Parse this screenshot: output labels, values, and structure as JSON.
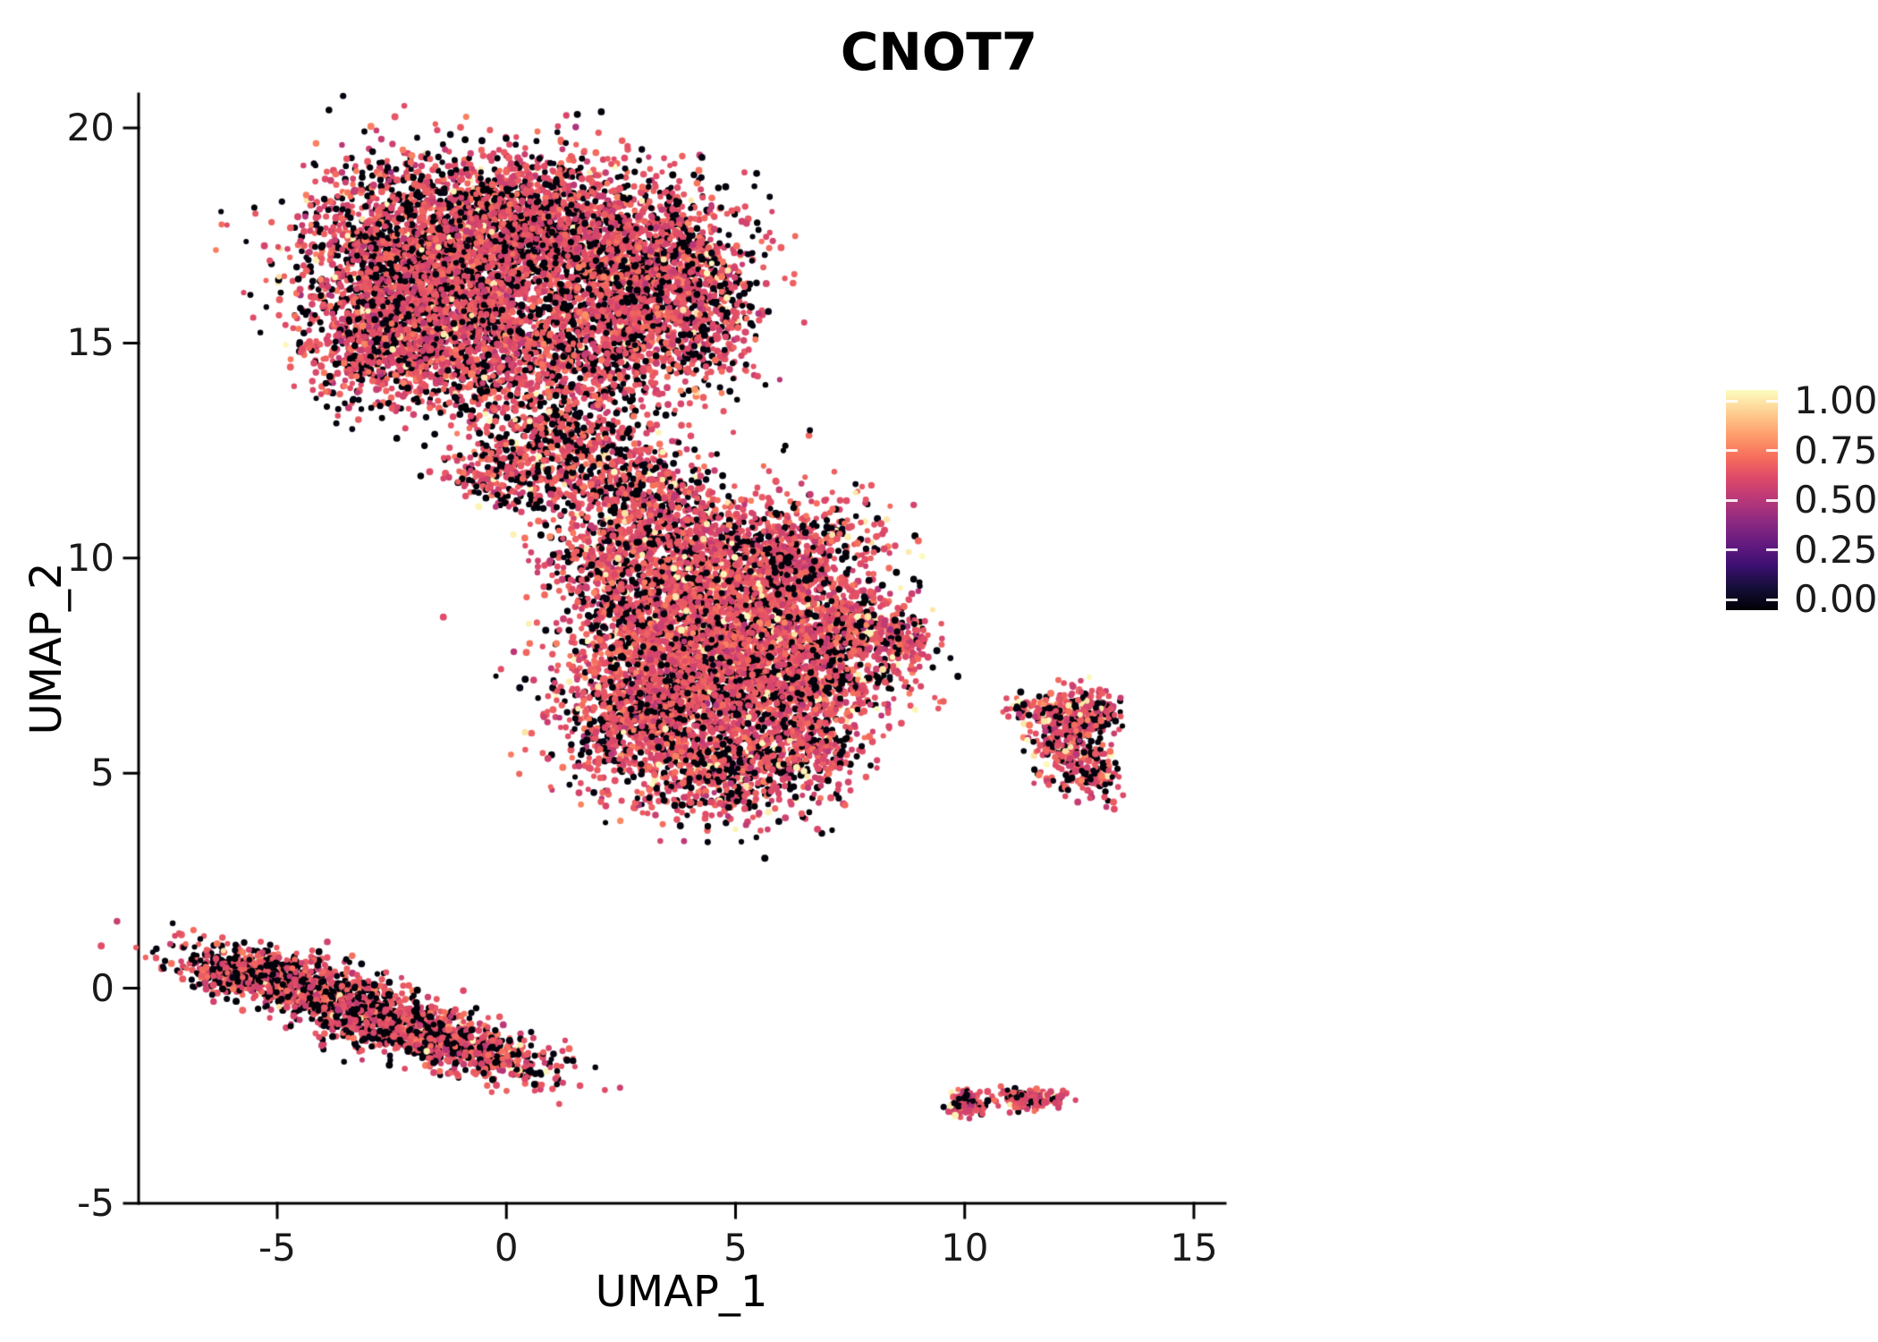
{
  "colors": {
    "background": "#ffffff",
    "axis_line": "#000000",
    "tick_text": "#1a1a1a",
    "title_text": "#000000"
  },
  "chart_data": {
    "type": "scatter",
    "title": "CNOT7",
    "xlabel": "UMAP_1",
    "ylabel": "UMAP_2",
    "xlim": [
      -8,
      16
    ],
    "ylim": [
      -5,
      21
    ],
    "grid": false,
    "n_points_approx": 19000,
    "point_radius_px": 3.4,
    "xticks": [
      -5,
      0,
      5,
      10,
      15
    ],
    "xtick_labels": [
      "-5",
      "0",
      "5",
      "10",
      "15"
    ],
    "yticks": [
      -5,
      0,
      5,
      10,
      15,
      20
    ],
    "ytick_labels": [
      "-5",
      "0",
      "5",
      "10",
      "15",
      "20"
    ],
    "colorbar": {
      "position": "right",
      "colormap": "magma",
      "tick_values": [
        1.0,
        0.75,
        0.5,
        0.25,
        0.0
      ],
      "tick_labels": [
        "1.00",
        "0.75",
        "0.50",
        "0.25",
        "0.00"
      ],
      "stops": [
        {
          "v": 0.0,
          "c": "#000004"
        },
        {
          "v": 0.1,
          "c": "#140e36"
        },
        {
          "v": 0.2,
          "c": "#3b0f70"
        },
        {
          "v": 0.3,
          "c": "#641a80"
        },
        {
          "v": 0.4,
          "c": "#8c2981"
        },
        {
          "v": 0.5,
          "c": "#b73779"
        },
        {
          "v": 0.6,
          "c": "#de4968"
        },
        {
          "v": 0.7,
          "c": "#f7705c"
        },
        {
          "v": 0.8,
          "c": "#fe9f6d"
        },
        {
          "v": 0.9,
          "c": "#fecf92"
        },
        {
          "v": 1.0,
          "c": "#fcfdbf"
        }
      ]
    },
    "clusters": [
      {
        "name": "upper-left-lobes",
        "extent": {
          "x": [
            -4.4,
            5.2
          ],
          "y": [
            11.4,
            19.8
          ]
        },
        "mix": {
          "p_zero": 0.3,
          "p_high": 0.025,
          "mid_mean": 0.62,
          "mid_sd": 0.055,
          "high_range": [
            0.93,
            1.0
          ]
        },
        "blobs": [
          {
            "cx": -1.9,
            "cy": 16.9,
            "sx": 1.25,
            "sy": 1.15,
            "rot": 0,
            "n": 2400
          },
          {
            "cx": 0.4,
            "cy": 17.6,
            "sx": 1.1,
            "sy": 0.85,
            "rot": 0,
            "n": 1500
          },
          {
            "cx": 3.1,
            "cy": 16.7,
            "sx": 1.05,
            "sy": 1.05,
            "rot": 0,
            "n": 1500
          },
          {
            "cx": -2.9,
            "cy": 15.0,
            "sx": 0.8,
            "sy": 0.7,
            "rot": 0,
            "n": 500
          },
          {
            "cx": -0.9,
            "cy": 14.8,
            "sx": 1.0,
            "sy": 0.8,
            "rot": 0,
            "n": 700
          },
          {
            "cx": 1.7,
            "cy": 14.9,
            "sx": 1.1,
            "sy": 0.8,
            "rot": 0,
            "n": 700
          },
          {
            "cx": 4.3,
            "cy": 15.4,
            "sx": 0.6,
            "sy": 0.8,
            "rot": 0,
            "n": 300
          },
          {
            "cx": 0.9,
            "cy": 12.9,
            "sx": 0.9,
            "sy": 0.7,
            "rot": -20,
            "n": 450,
            "p_zero": 0.38
          },
          {
            "cx": 0.0,
            "cy": 11.9,
            "sx": 0.7,
            "sy": 0.4,
            "rot": -10,
            "n": 220,
            "p_zero": 0.34
          },
          {
            "cx": 2.2,
            "cy": 12.3,
            "sx": 0.8,
            "sy": 0.7,
            "rot": 0,
            "n": 260,
            "p_zero": 0.4
          },
          {
            "cx": 3.3,
            "cy": 11.6,
            "sx": 0.6,
            "sy": 0.5,
            "rot": 0,
            "n": 120,
            "p_zero": 0.4
          }
        ]
      },
      {
        "name": "central",
        "extent": {
          "x": [
            1.2,
            9.0
          ],
          "y": [
            3.8,
            12.0
          ]
        },
        "mix": {
          "p_zero": 0.24,
          "p_high": 0.045,
          "mid_mean": 0.62,
          "mid_sd": 0.055,
          "high_range": [
            0.93,
            1.0
          ]
        },
        "blobs": [
          {
            "cx": 4.3,
            "cy": 8.7,
            "sx": 1.3,
            "sy": 1.1,
            "rot": 0,
            "n": 2400
          },
          {
            "cx": 3.2,
            "cy": 6.5,
            "sx": 1.1,
            "sy": 0.95,
            "rot": 0,
            "n": 1300
          },
          {
            "cx": 6.1,
            "cy": 7.3,
            "sx": 1.1,
            "sy": 1.0,
            "rot": 0,
            "n": 1300
          },
          {
            "cx": 5.8,
            "cy": 10.2,
            "sx": 1.2,
            "sy": 0.75,
            "rot": 0,
            "n": 700
          },
          {
            "cx": 7.9,
            "cy": 8.3,
            "sx": 0.75,
            "sy": 0.55,
            "rot": -15,
            "n": 350
          },
          {
            "cx": 8.7,
            "cy": 8.1,
            "sx": 0.3,
            "sy": 0.25,
            "rot": 0,
            "n": 60
          },
          {
            "cx": 4.9,
            "cy": 5.0,
            "sx": 1.0,
            "sy": 0.6,
            "rot": 0,
            "n": 450,
            "p_zero": 0.36
          },
          {
            "cx": 6.4,
            "cy": 5.6,
            "sx": 0.6,
            "sy": 0.5,
            "rot": 0,
            "n": 220
          },
          {
            "cx": 2.9,
            "cy": 10.9,
            "sx": 0.8,
            "sy": 0.55,
            "rot": 20,
            "n": 300
          },
          {
            "cx": 2.0,
            "cy": 9.8,
            "sx": 0.6,
            "sy": 0.6,
            "rot": 0,
            "n": 220
          }
        ]
      },
      {
        "name": "lower-left-strip",
        "extent": {
          "x": [
            -6.4,
            0.4
          ],
          "y": [
            -2.0,
            0.8
          ]
        },
        "mix": {
          "p_zero": 0.4,
          "p_high": 0.02,
          "mid_mean": 0.62,
          "mid_sd": 0.05,
          "high_range": [
            0.93,
            1.0
          ]
        },
        "blobs": [
          {
            "cx": -4.8,
            "cy": 0.15,
            "sx": 1.2,
            "sy": 0.32,
            "rot": -14,
            "n": 800
          },
          {
            "cx": -2.7,
            "cy": -0.7,
            "sx": 1.3,
            "sy": 0.34,
            "rot": -16,
            "n": 850
          },
          {
            "cx": -0.8,
            "cy": -1.45,
            "sx": 1.0,
            "sy": 0.28,
            "rot": -13,
            "n": 450
          },
          {
            "cx": -5.9,
            "cy": 0.35,
            "sx": 0.4,
            "sy": 0.22,
            "rot": -10,
            "n": 120
          }
        ]
      },
      {
        "name": "right-small",
        "extent": {
          "x": [
            11.0,
            13.4
          ],
          "y": [
            4.4,
            7.1
          ]
        },
        "mix": {
          "p_zero": 0.3,
          "p_high": 0.08,
          "mid_mean": 0.62,
          "mid_sd": 0.06,
          "high_range": [
            0.93,
            1.0
          ]
        },
        "blobs": [
          {
            "cx": 12.6,
            "cy": 6.4,
            "sx": 0.38,
            "sy": 0.3,
            "rot": 0,
            "n": 240
          },
          {
            "cx": 12.15,
            "cy": 5.6,
            "sx": 0.33,
            "sy": 0.38,
            "rot": 0,
            "n": 180
          },
          {
            "cx": 12.85,
            "cy": 5.0,
            "sx": 0.3,
            "sy": 0.35,
            "rot": 0,
            "n": 140
          },
          {
            "cx": 11.7,
            "cy": 6.5,
            "sx": 0.35,
            "sy": 0.2,
            "rot": 0,
            "n": 60
          },
          {
            "cx": 11.2,
            "cy": 6.55,
            "sx": 0.12,
            "sy": 0.1,
            "rot": 0,
            "n": 10
          }
        ]
      },
      {
        "name": "bottom-right-small",
        "extent": {
          "x": [
            9.6,
            12.2
          ],
          "y": [
            -3.1,
            -2.3
          ]
        },
        "mix": {
          "p_zero": 0.25,
          "p_high": 0.06,
          "mid_mean": 0.62,
          "mid_sd": 0.05,
          "high_range": [
            0.93,
            1.0
          ]
        },
        "blobs": [
          {
            "cx": 10.0,
            "cy": -2.7,
            "sx": 0.22,
            "sy": 0.16,
            "rot": 0,
            "n": 90
          },
          {
            "cx": 11.35,
            "cy": -2.6,
            "sx": 0.3,
            "sy": 0.13,
            "rot": -5,
            "n": 110
          },
          {
            "cx": 11.95,
            "cy": -2.55,
            "sx": 0.15,
            "sy": 0.1,
            "rot": 0,
            "n": 30
          },
          {
            "cx": 10.65,
            "cy": -2.62,
            "sx": 0.05,
            "sy": 0.04,
            "rot": 0,
            "n": 3
          }
        ]
      },
      {
        "name": "outliers",
        "extent": {
          "x": [
            6.7,
            9.2
          ],
          "y": [
            3.5,
            8.2
          ]
        },
        "mix": {
          "p_zero": 0.2,
          "p_high": 0.0,
          "mid_mean": 0.62,
          "mid_sd": 0.04,
          "high_range": [
            0.93,
            1.0
          ]
        },
        "blobs": [
          {
            "cx": 6.85,
            "cy": 3.6,
            "sx": 0.06,
            "sy": 0.05,
            "rot": 0,
            "n": 2
          },
          {
            "cx": 9.0,
            "cy": 8.05,
            "sx": 0.15,
            "sy": 0.1,
            "rot": 0,
            "n": 6
          }
        ]
      }
    ]
  }
}
